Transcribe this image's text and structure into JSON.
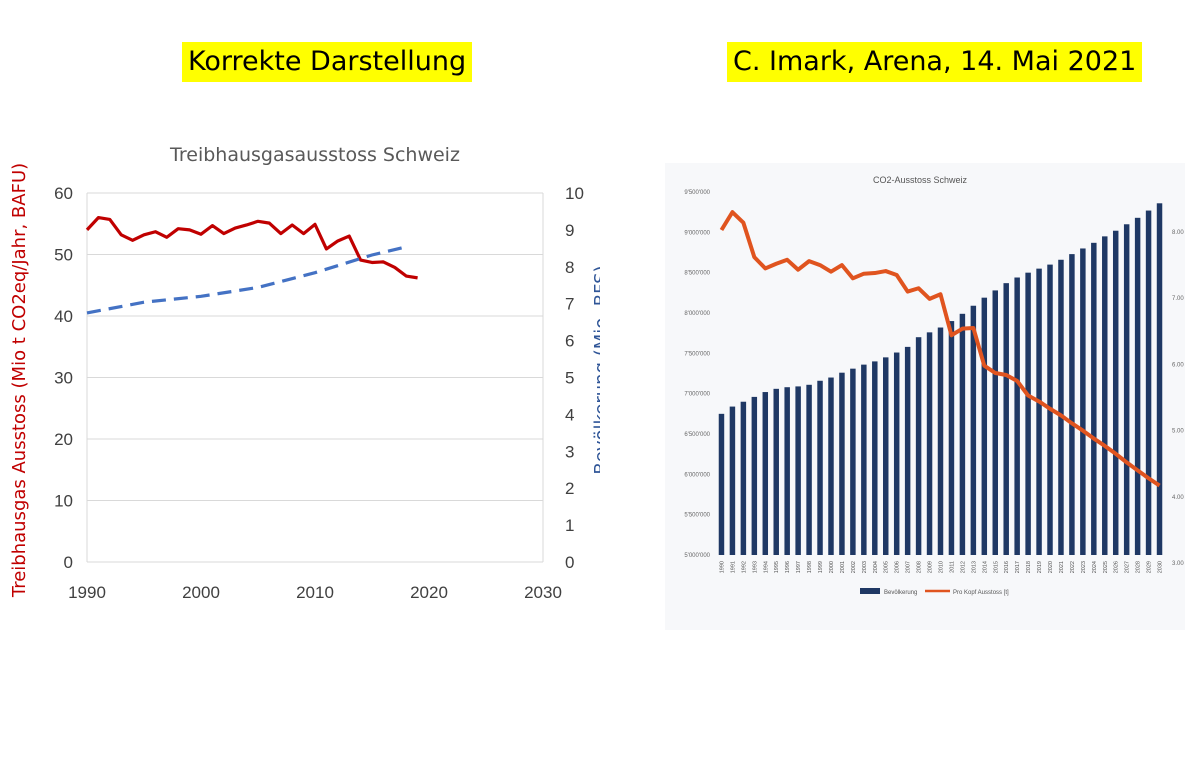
{
  "headings": {
    "left": "Korrekte Darstellung",
    "right": "C. Imark, Arena, 14. Mai 2021"
  },
  "colors": {
    "highlight": "#ffff00",
    "emissions": "#c00000",
    "population": "#4472c4",
    "bars": "#1f3864",
    "perCapita": "#e0541f",
    "grid": "#d9d9d9"
  },
  "chart_data": [
    {
      "type": "line",
      "title": "Treibhausgasausstoss Schweiz",
      "ylabel": "Treibhausgas Ausstoss (Mio t CO2eq/Jahr, BAFU)",
      "y2label": "Bevölkerung (Mio, BFS)",
      "xlim": [
        1990,
        2030
      ],
      "ylim": [
        0,
        60
      ],
      "y2lim": [
        0,
        10
      ],
      "xticks": [
        1990,
        2000,
        2010,
        2020,
        2030
      ],
      "yticks": [
        0,
        10,
        20,
        30,
        40,
        50,
        60
      ],
      "y2ticks": [
        0,
        1,
        2,
        3,
        4,
        5,
        6,
        7,
        8,
        9,
        10
      ],
      "grid": true,
      "series": [
        {
          "axis": "left",
          "style": "solid",
          "x": [
            1990,
            1991,
            1992,
            1993,
            1994,
            1995,
            1996,
            1997,
            1998,
            1999,
            2000,
            2001,
            2002,
            2003,
            2004,
            2005,
            2006,
            2007,
            2008,
            2009,
            2010,
            2011,
            2012,
            2013,
            2014,
            2015,
            2016,
            2017,
            2018,
            2019
          ],
          "values": [
            54.0,
            56.0,
            55.7,
            53.2,
            52.3,
            53.2,
            53.7,
            52.8,
            54.2,
            54.0,
            53.3,
            54.7,
            53.4,
            54.3,
            54.8,
            55.4,
            55.1,
            53.4,
            54.8,
            53.4,
            54.9,
            50.9,
            52.2,
            53.0,
            49.1,
            48.7,
            48.8,
            47.9,
            46.5,
            46.2
          ]
        },
        {
          "axis": "right",
          "style": "dashed",
          "x": [
            1990,
            1995,
            2000,
            2005,
            2010,
            2015,
            2018
          ],
          "values": [
            6.75,
            7.04,
            7.2,
            7.44,
            7.84,
            8.32,
            8.54
          ]
        }
      ]
    },
    {
      "type": "bar",
      "title": "CO2-Ausstoss Schweiz",
      "categories": [
        "1990",
        "1991",
        "1992",
        "1993",
        "1994",
        "1995",
        "1996",
        "1997",
        "1998",
        "1999",
        "2000",
        "2001",
        "2002",
        "2003",
        "2004",
        "2005",
        "2006",
        "2007",
        "2008",
        "2009",
        "2010",
        "2011",
        "2012",
        "2013",
        "2014",
        "2015",
        "2016",
        "2017",
        "2018",
        "2019",
        "2020",
        "2021",
        "2022",
        "2023",
        "2024",
        "2025",
        "2026",
        "2027",
        "2028",
        "2029",
        "2030"
      ],
      "ylim": [
        5000000,
        9500000
      ],
      "y2lim": [
        3,
        8.5
      ],
      "yticks": [
        "5'000'000",
        "5'500'000",
        "6'000'000",
        "6'500'000",
        "7'000'000",
        "7'500'000",
        "8'000'000",
        "8'500'000",
        "9'000'000",
        "9'500'000"
      ],
      "y2ticks": [
        "3.00",
        "4.00",
        "5.00",
        "6.00",
        "7.00",
        "8.00"
      ],
      "legend": "bottom",
      "series": [
        {
          "name": "Bevölkerung",
          "type": "bar",
          "axis": "left",
          "values": [
            6750000,
            6840000,
            6900000,
            6960000,
            7020000,
            7060000,
            7080000,
            7090000,
            7110000,
            7160000,
            7200000,
            7260000,
            7310000,
            7360000,
            7400000,
            7450000,
            7510000,
            7580000,
            7700000,
            7760000,
            7820000,
            7900000,
            7990000,
            8090000,
            8190000,
            8280000,
            8370000,
            8440000,
            8500000,
            8550000,
            8600000,
            8660000,
            8730000,
            8800000,
            8870000,
            8950000,
            9020000,
            9100000,
            9180000,
            9270000,
            9360000
          ]
        },
        {
          "name": "Pro Kopf Ausstoss [t]",
          "type": "line",
          "axis": "right",
          "values": [
            8.03,
            8.3,
            8.14,
            7.62,
            7.45,
            7.52,
            7.58,
            7.43,
            7.56,
            7.5,
            7.4,
            7.5,
            7.3,
            7.37,
            7.38,
            7.41,
            7.35,
            7.1,
            7.15,
            6.99,
            7.06,
            6.44,
            6.54,
            6.55,
            5.98,
            5.87,
            5.84,
            5.75,
            5.53,
            5.44,
            5.33,
            5.23,
            5.11,
            5.0,
            4.88,
            4.77,
            4.65,
            4.52,
            4.4,
            4.28,
            4.17
          ]
        }
      ]
    }
  ]
}
